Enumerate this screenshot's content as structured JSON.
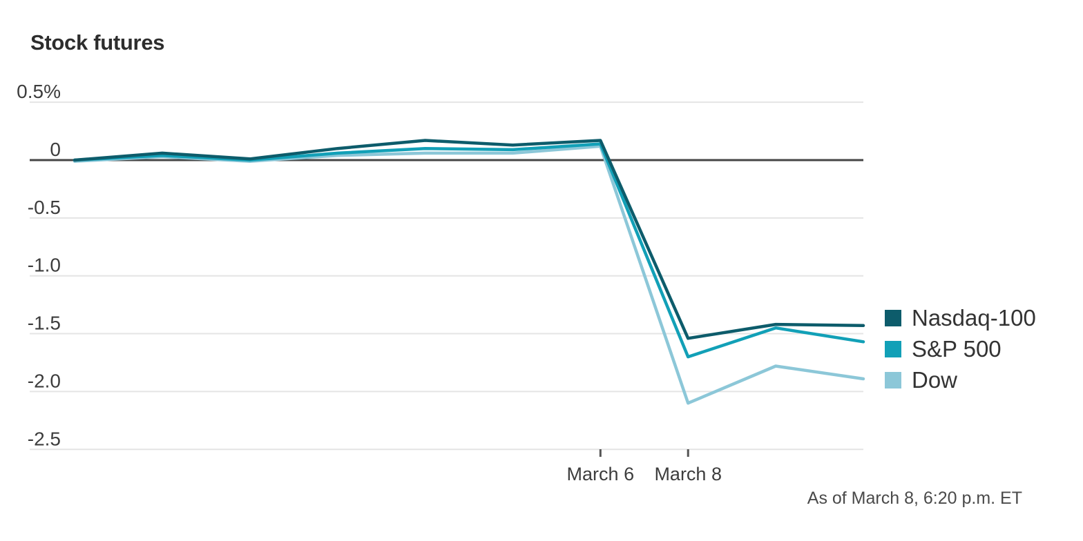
{
  "title": "Stock futures",
  "footer": "As of March 8, 6:20 p.m. ET",
  "colors": {
    "background": "#ffffff",
    "title_text": "#2d2d2d",
    "axis_text": "#3d3d3d",
    "gridline": "#e4e4e4",
    "zero_axis": "#454545",
    "nasdaq": "#0d5c6b",
    "sp500": "#12a0b7",
    "dow": "#8cc7d8"
  },
  "chart_data": {
    "type": "line",
    "title": "Stock futures",
    "unit": "percent change",
    "ylim": [
      -2.5,
      0.5
    ],
    "grid": "horizontal",
    "legend_position": "right",
    "zero_axis": true,
    "x_point_count": 10,
    "xticks": [
      {
        "point_index": 6,
        "label": "March 6"
      },
      {
        "point_index": 7,
        "label": "March 8"
      }
    ],
    "yticks": [
      {
        "value": 0.5,
        "label": "0.5%"
      },
      {
        "value": 0,
        "label": "0"
      },
      {
        "value": -0.5,
        "label": "-0.5"
      },
      {
        "value": -1.0,
        "label": "-1.0"
      },
      {
        "value": -1.5,
        "label": "-1.5"
      },
      {
        "value": -2.0,
        "label": "-2.0"
      },
      {
        "value": -2.5,
        "label": "-2.5"
      }
    ],
    "series": [
      {
        "name": "Nasdaq-100",
        "color": "#0d5c6b",
        "values": [
          0.0,
          0.06,
          0.01,
          0.1,
          0.17,
          0.13,
          0.17,
          -1.54,
          -1.42,
          -1.43
        ]
      },
      {
        "name": "S&P 500",
        "color": "#12a0b7",
        "values": [
          0.0,
          0.04,
          0.0,
          0.06,
          0.1,
          0.09,
          0.14,
          -1.7,
          -1.45,
          -1.57
        ]
      },
      {
        "name": "Dow",
        "color": "#8cc7d8",
        "values": [
          -0.01,
          0.03,
          -0.01,
          0.04,
          0.06,
          0.06,
          0.12,
          -2.1,
          -1.78,
          -1.89
        ]
      }
    ],
    "note": "As of March 8, 6:20 p.m. ET"
  }
}
